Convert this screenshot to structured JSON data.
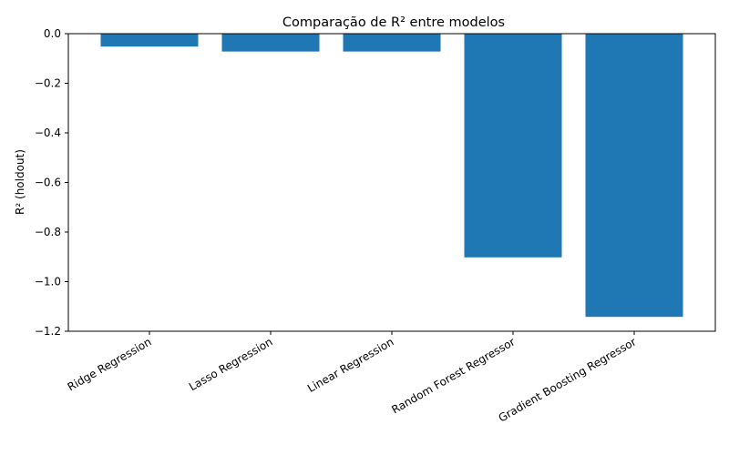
{
  "chart_data": {
    "type": "bar",
    "title": "Comparação de R² entre modelos",
    "xlabel": "",
    "ylabel": "R² (holdout)",
    "categories": [
      "Ridge Regression",
      "Lasso Regression",
      "Linear Regression",
      "Random Forest Regressor",
      "Gradient Boosting Regressor"
    ],
    "values": [
      -0.052,
      -0.072,
      -0.072,
      -0.902,
      -1.142
    ],
    "ylim": [
      -1.2,
      0.0
    ],
    "yticks": [
      0.0,
      -0.2,
      -0.4,
      -0.6,
      -0.8,
      -1.0,
      -1.2
    ],
    "ytick_labels": [
      "0.0",
      "−0.2",
      "−0.4",
      "−0.6",
      "−0.8",
      "−1.0",
      "−1.2"
    ],
    "bar_color": "#1f77b4",
    "grid": false,
    "legend": "none"
  }
}
